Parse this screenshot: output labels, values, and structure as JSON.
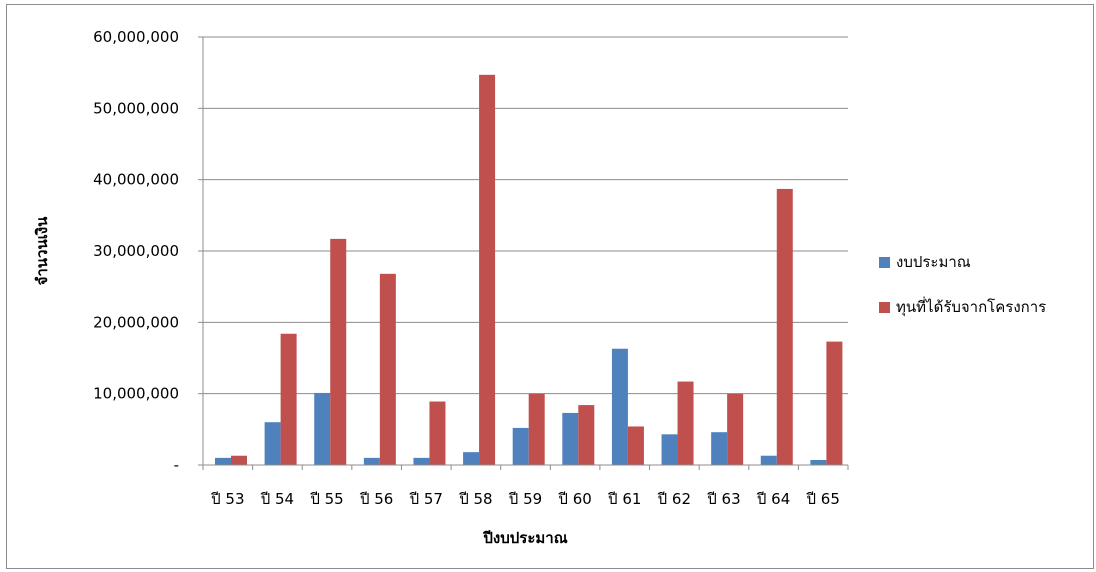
{
  "chart_data": {
    "type": "bar",
    "title": "",
    "xlabel": "ปีงบประมาณ",
    "ylabel": "จำนวนเงิน",
    "ylim": [
      0,
      60000000
    ],
    "ytick_labels": [
      "-",
      "10,000,000",
      "20,000,000",
      "30,000,000",
      "40,000,000",
      "50,000,000",
      "60,000,000"
    ],
    "grid": true,
    "legend_position": "right",
    "categories": [
      "ปี 53",
      "ปี 54",
      "ปี 55",
      "ปี 56",
      "ปี 57",
      "ปี 58",
      "ปี 59",
      "ปี 60",
      "ปี 61",
      "ปี 62",
      "ปี 63",
      "ปี 64",
      "ปี 65"
    ],
    "series": [
      {
        "name": "งบประมาณ",
        "color": "#4f81bd",
        "values": [
          1000000,
          6000000,
          10100000,
          1000000,
          1000000,
          1800000,
          5200000,
          7300000,
          16300000,
          4300000,
          4600000,
          1300000,
          700000
        ]
      },
      {
        "name": "ทุนที่ได้รับจากโครงการ",
        "color": "#c0504d",
        "values": [
          1300000,
          18400000,
          31700000,
          26800000,
          8900000,
          54700000,
          10000000,
          8400000,
          5400000,
          11700000,
          10000000,
          38700000,
          17300000
        ]
      }
    ]
  }
}
